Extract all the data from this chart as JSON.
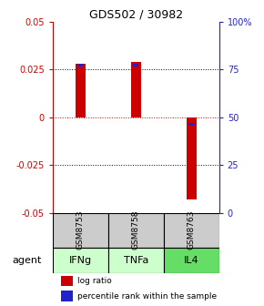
{
  "title": "GDS502 / 30982",
  "samples": [
    "GSM8753",
    "GSM8758",
    "GSM8763"
  ],
  "agents": [
    "IFNg",
    "TNFa",
    "IL4"
  ],
  "log_ratios": [
    0.028,
    0.029,
    -0.043
  ],
  "percentile_ranks_mapped": [
    0.78,
    0.78,
    0.47
  ],
  "ylim_left": [
    -0.05,
    0.05
  ],
  "ylim_right": [
    0.0,
    1.0
  ],
  "yticks_left": [
    -0.05,
    -0.025,
    0.0,
    0.025,
    0.05
  ],
  "ytick_labels_left": [
    "-0.05",
    "-0.025",
    "0",
    "0.025",
    "0.05"
  ],
  "yticks_right": [
    0.0,
    0.25,
    0.5,
    0.75,
    1.0
  ],
  "ytick_labels_right": [
    "0",
    "25",
    "50",
    "75",
    "100%"
  ],
  "bar_width": 0.18,
  "blue_bar_width": 0.1,
  "blue_bar_height": 0.003,
  "bar_color_red": "#cc0000",
  "bar_color_blue": "#2222cc",
  "sample_bg_color": "#cccccc",
  "agent_colors": [
    "#ccffcc",
    "#ccffcc",
    "#66dd66"
  ],
  "zero_line_color": "#cc0000",
  "left_axis_color": "#cc0000",
  "right_axis_color": "#2222cc"
}
